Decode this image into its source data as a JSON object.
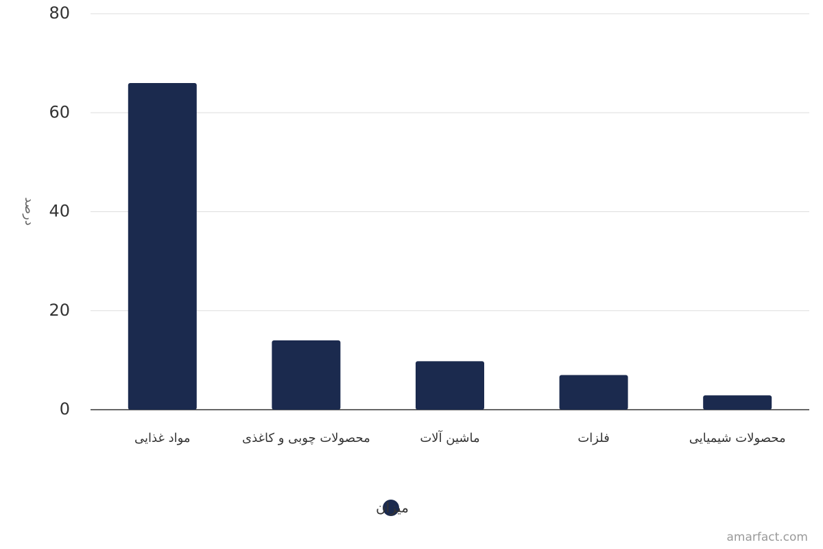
{
  "chart_data": {
    "type": "bar",
    "y_label": "درصد",
    "categories": [
      "مواد غذایی",
      "محصولات چوبی و کاغذی",
      "ماشین آلات",
      "فلزات",
      "محصولات شیمیایی"
    ],
    "series": [
      {
        "name": "میزان",
        "color": "#1b2a4e",
        "values": [
          66,
          14,
          9.8,
          7,
          2.9
        ]
      }
    ],
    "ylim": [
      0,
      80
    ],
    "yticks": [
      0,
      20,
      40,
      60,
      80
    ],
    "grid": true,
    "legend": "bottom",
    "watermark": "amarfact.com"
  }
}
